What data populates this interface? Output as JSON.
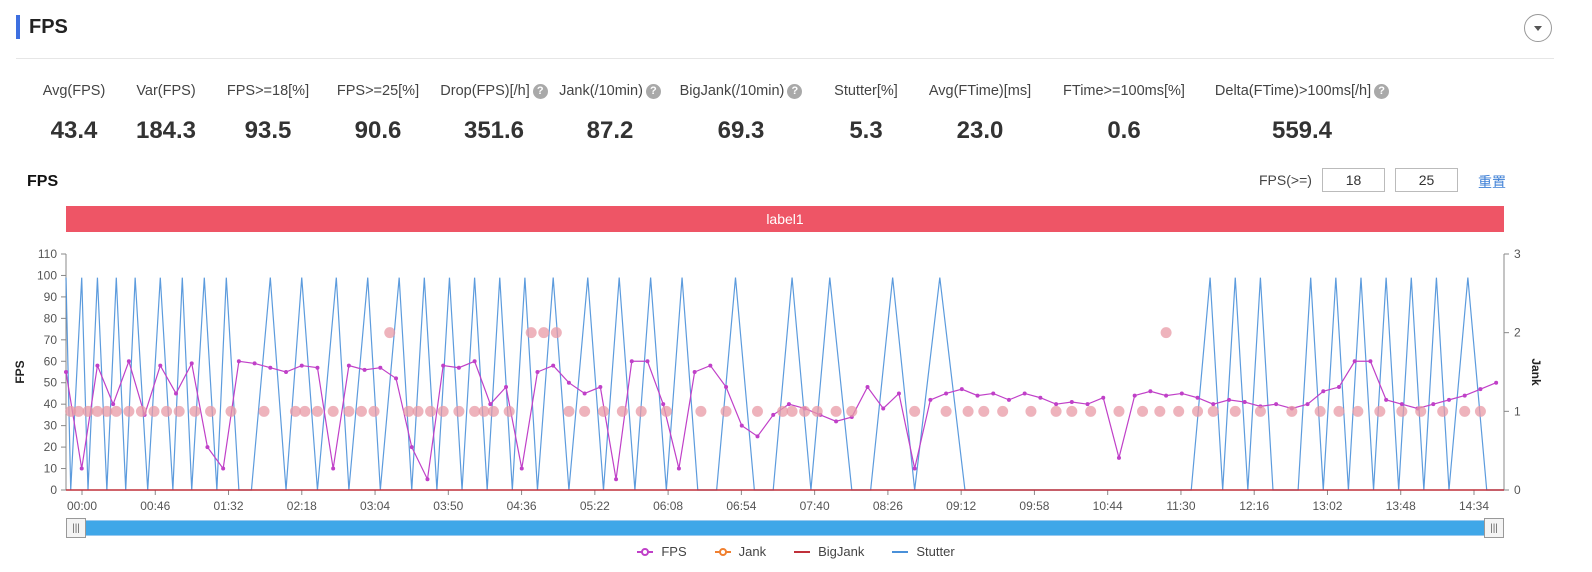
{
  "section": {
    "title": "FPS"
  },
  "metrics": [
    {
      "label": "Avg(FPS)",
      "value": "43.4",
      "help": false
    },
    {
      "label": "Var(FPS)",
      "value": "184.3",
      "help": false
    },
    {
      "label": "FPS>=18[%]",
      "value": "93.5",
      "help": false
    },
    {
      "label": "FPS>=25[%]",
      "value": "90.6",
      "help": false
    },
    {
      "label": "Drop(FPS)[/h]",
      "value": "351.6",
      "help": true
    },
    {
      "label": "Jank(/10min)",
      "value": "87.2",
      "help": true
    },
    {
      "label": "BigJank(/10min)",
      "value": "69.3",
      "help": true
    },
    {
      "label": "Stutter[%]",
      "value": "5.3",
      "help": false
    },
    {
      "label": "Avg(FTime)[ms]",
      "value": "23.0",
      "help": false
    },
    {
      "label": "FTime>=100ms[%]",
      "value": "0.6",
      "help": false
    },
    {
      "label": "Delta(FTime)>100ms[/h]",
      "value": "559.4",
      "help": true
    }
  ],
  "help_icon_glyph": "?",
  "chart_header": {
    "title": "FPS",
    "threshold_label": "FPS(>=)",
    "threshold_low": "18",
    "threshold_high": "25",
    "reset_label": "重置"
  },
  "label_band": {
    "text": "label1",
    "color": "#ee5566"
  },
  "slider": {
    "start": 0,
    "end": 1,
    "handle_glyph": "|||"
  },
  "chart_data": {
    "type": "line",
    "ylabel": "FPS",
    "y2label": "Jank",
    "ylim": [
      0,
      110
    ],
    "y2lim": [
      0,
      3
    ],
    "yticks": [
      0,
      10,
      20,
      30,
      40,
      50,
      60,
      70,
      80,
      90,
      100,
      110
    ],
    "y2ticks": [
      0,
      1,
      2,
      3
    ],
    "xticks": [
      "00:00",
      "00:46",
      "01:32",
      "02:18",
      "03:04",
      "03:50",
      "04:36",
      "05:22",
      "06:08",
      "06:54",
      "07:40",
      "08:26",
      "09:12",
      "09:58",
      "10:44",
      "11:30",
      "12:16",
      "13:02",
      "13:48",
      "14:34"
    ],
    "xrange_seconds": [
      0,
      915
    ],
    "legend": [
      "FPS",
      "Jank",
      "BigJank",
      "Stutter"
    ],
    "legend_position": "bottom",
    "colors": {
      "FPS": "#c040c8",
      "Jank": "#f08030",
      "BigJank": "#c0303a",
      "Stutter": "#4a90d9"
    },
    "series": [
      {
        "name": "FPS",
        "x": [
          0,
          10,
          20,
          30,
          40,
          50,
          60,
          70,
          80,
          90,
          100,
          110,
          120,
          130,
          140,
          150,
          160,
          170,
          180,
          190,
          200,
          210,
          220,
          230,
          240,
          250,
          260,
          270,
          280,
          290,
          300,
          310,
          320,
          330,
          340,
          350,
          360,
          370,
          380,
          390,
          400,
          410,
          420,
          430,
          440,
          450,
          460,
          470,
          480,
          490,
          500,
          510,
          520,
          530,
          540,
          550,
          560,
          570,
          580,
          590,
          600,
          610,
          620,
          630,
          640,
          650,
          660,
          670,
          680,
          690,
          700,
          710,
          720,
          730,
          740,
          750,
          760,
          770,
          780,
          790,
          800,
          810,
          820,
          830,
          840,
          850,
          860,
          870,
          880,
          890,
          900,
          910
        ],
        "values": [
          55,
          10,
          58,
          40,
          60,
          35,
          58,
          45,
          59,
          20,
          10,
          60,
          59,
          57,
          55,
          58,
          57,
          10,
          58,
          56,
          57,
          52,
          20,
          5,
          58,
          57,
          60,
          40,
          48,
          10,
          55,
          58,
          50,
          45,
          48,
          5,
          60,
          60,
          40,
          10,
          55,
          58,
          48,
          30,
          25,
          35,
          40,
          38,
          35,
          32,
          34,
          48,
          38,
          45,
          10,
          42,
          45,
          47,
          44,
          45,
          42,
          45,
          43,
          40,
          41,
          40,
          43,
          15,
          44,
          46,
          44,
          45,
          43,
          40,
          42,
          41,
          39,
          40,
          38,
          40,
          46,
          48,
          60,
          60,
          42,
          40,
          38,
          40,
          42,
          44,
          47,
          50
        ]
      },
      {
        "name": "Stutter",
        "x": [
          0,
          3,
          10,
          14,
          20,
          26,
          32,
          38,
          44,
          52,
          60,
          68,
          74,
          80,
          88,
          96,
          102,
          110,
          118,
          130,
          140,
          150,
          160,
          172,
          180,
          192,
          200,
          212,
          220,
          228,
          236,
          244,
          252,
          260,
          268,
          276,
          284,
          292,
          300,
          310,
          320,
          332,
          342,
          352,
          362,
          372,
          382,
          392,
          402,
          414,
          426,
          438,
          450,
          462,
          474,
          486,
          500,
          512,
          526,
          540,
          556,
          572,
          588,
          604,
          620,
          636,
          652,
          668,
          684,
          700,
          716,
          728,
          736,
          744,
          752,
          760,
          768,
          776,
          784,
          792,
          800,
          808,
          816,
          824,
          832,
          840,
          848,
          856,
          864,
          872,
          880,
          892,
          904,
          915
        ],
        "values": [
          2.7,
          0,
          2.7,
          0,
          2.7,
          0,
          2.7,
          0,
          2.7,
          0,
          2.7,
          0,
          2.7,
          0,
          2.7,
          0,
          2.7,
          0,
          0,
          2.7,
          0,
          2.7,
          0,
          2.7,
          0,
          2.7,
          0,
          2.7,
          0,
          2.7,
          0,
          2.7,
          0,
          2.7,
          0,
          2.7,
          0,
          2.7,
          0,
          2.7,
          0,
          2.7,
          0,
          2.7,
          0,
          2.7,
          0,
          2.7,
          0,
          0,
          2.7,
          0,
          0,
          2.7,
          0,
          2.7,
          0,
          0,
          2.7,
          0,
          2.7,
          0,
          0,
          0,
          0,
          0,
          0,
          0,
          0,
          0,
          0,
          2.7,
          0,
          2.7,
          0,
          2.7,
          0,
          0,
          0,
          2.7,
          0,
          2.7,
          0,
          2.7,
          0,
          2.7,
          0,
          2.7,
          0,
          2.7,
          0,
          2.7,
          0,
          0
        ]
      },
      {
        "name": "Jank",
        "x": [
          3,
          8,
          14,
          20,
          26,
          32,
          40,
          48,
          56,
          64,
          72,
          82,
          92,
          105,
          126,
          146,
          152,
          160,
          170,
          180,
          188,
          196,
          206,
          218,
          224,
          232,
          240,
          250,
          260,
          266,
          272,
          282,
          296,
          304,
          312,
          320,
          330,
          342,
          354,
          366,
          382,
          404,
          420,
          440,
          456,
          462,
          470,
          478,
          490,
          500,
          540,
          560,
          574,
          584,
          596,
          614,
          630,
          640,
          652,
          670,
          685,
          696,
          700,
          708,
          720,
          730,
          744,
          760,
          780,
          798,
          810,
          822,
          836,
          850,
          862,
          876,
          890,
          900
        ],
        "values": [
          1,
          1,
          1,
          1,
          1,
          1,
          1,
          1,
          1,
          1,
          1,
          1,
          1,
          1,
          1,
          1,
          1,
          1,
          1,
          1,
          1,
          1,
          2,
          1,
          1,
          1,
          1,
          1,
          1,
          1,
          1,
          1,
          2,
          2,
          2,
          1,
          1,
          1,
          1,
          1,
          1,
          1,
          1,
          1,
          1,
          1,
          1,
          1,
          1,
          1,
          1,
          1,
          1,
          1,
          1,
          1,
          1,
          1,
          1,
          1,
          1,
          1,
          2,
          1,
          1,
          1,
          1,
          1,
          1,
          1,
          1,
          1,
          1,
          1,
          1,
          1,
          1,
          1
        ]
      },
      {
        "name": "BigJank",
        "x": [
          0,
          915
        ],
        "values": [
          0,
          0
        ]
      }
    ]
  }
}
